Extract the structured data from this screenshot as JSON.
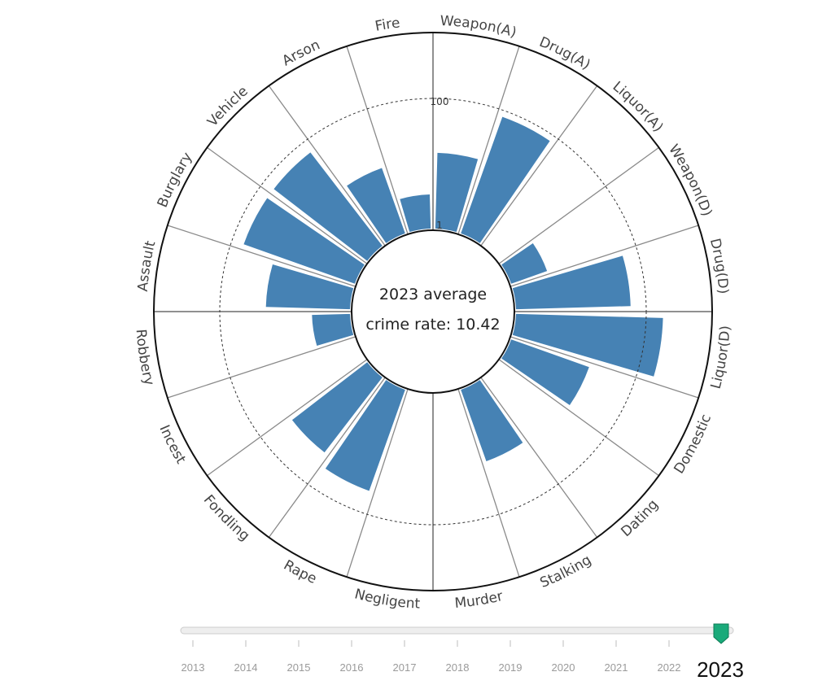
{
  "chart_data": {
    "type": "radial-bar",
    "scale": "log",
    "radial_ticks": [
      {
        "value": 1,
        "label": "1"
      },
      {
        "value": 100,
        "label": "100"
      }
    ],
    "center_text_line1": "2023 average",
    "center_text_line2": "crime rate: 10.42",
    "categories": [
      "Weapon(A)",
      "Drug(A)",
      "Liquor(A)",
      "Weapon(D)",
      "Drug(D)",
      "Liquor(D)",
      "Domestic",
      "Dating",
      "Stalking",
      "Murder",
      "Negligent",
      "Rape",
      "Fondling",
      "Incest",
      "Robbery",
      "Assault",
      "Burglary",
      "Vehicle",
      "Arson",
      "Fire"
    ],
    "values": [
      15,
      80,
      0,
      4,
      58,
      180,
      19,
      0,
      15,
      0,
      0,
      45,
      29,
      0,
      4,
      20,
      65,
      65,
      12,
      3.5
    ],
    "bar_color": "#4682b4",
    "grid": true
  },
  "slider": {
    "years": [
      "2013",
      "2014",
      "2015",
      "2016",
      "2017",
      "2018",
      "2019",
      "2020",
      "2021",
      "2022"
    ],
    "current_value": "2023",
    "handle_color": "#1aaa7a"
  }
}
